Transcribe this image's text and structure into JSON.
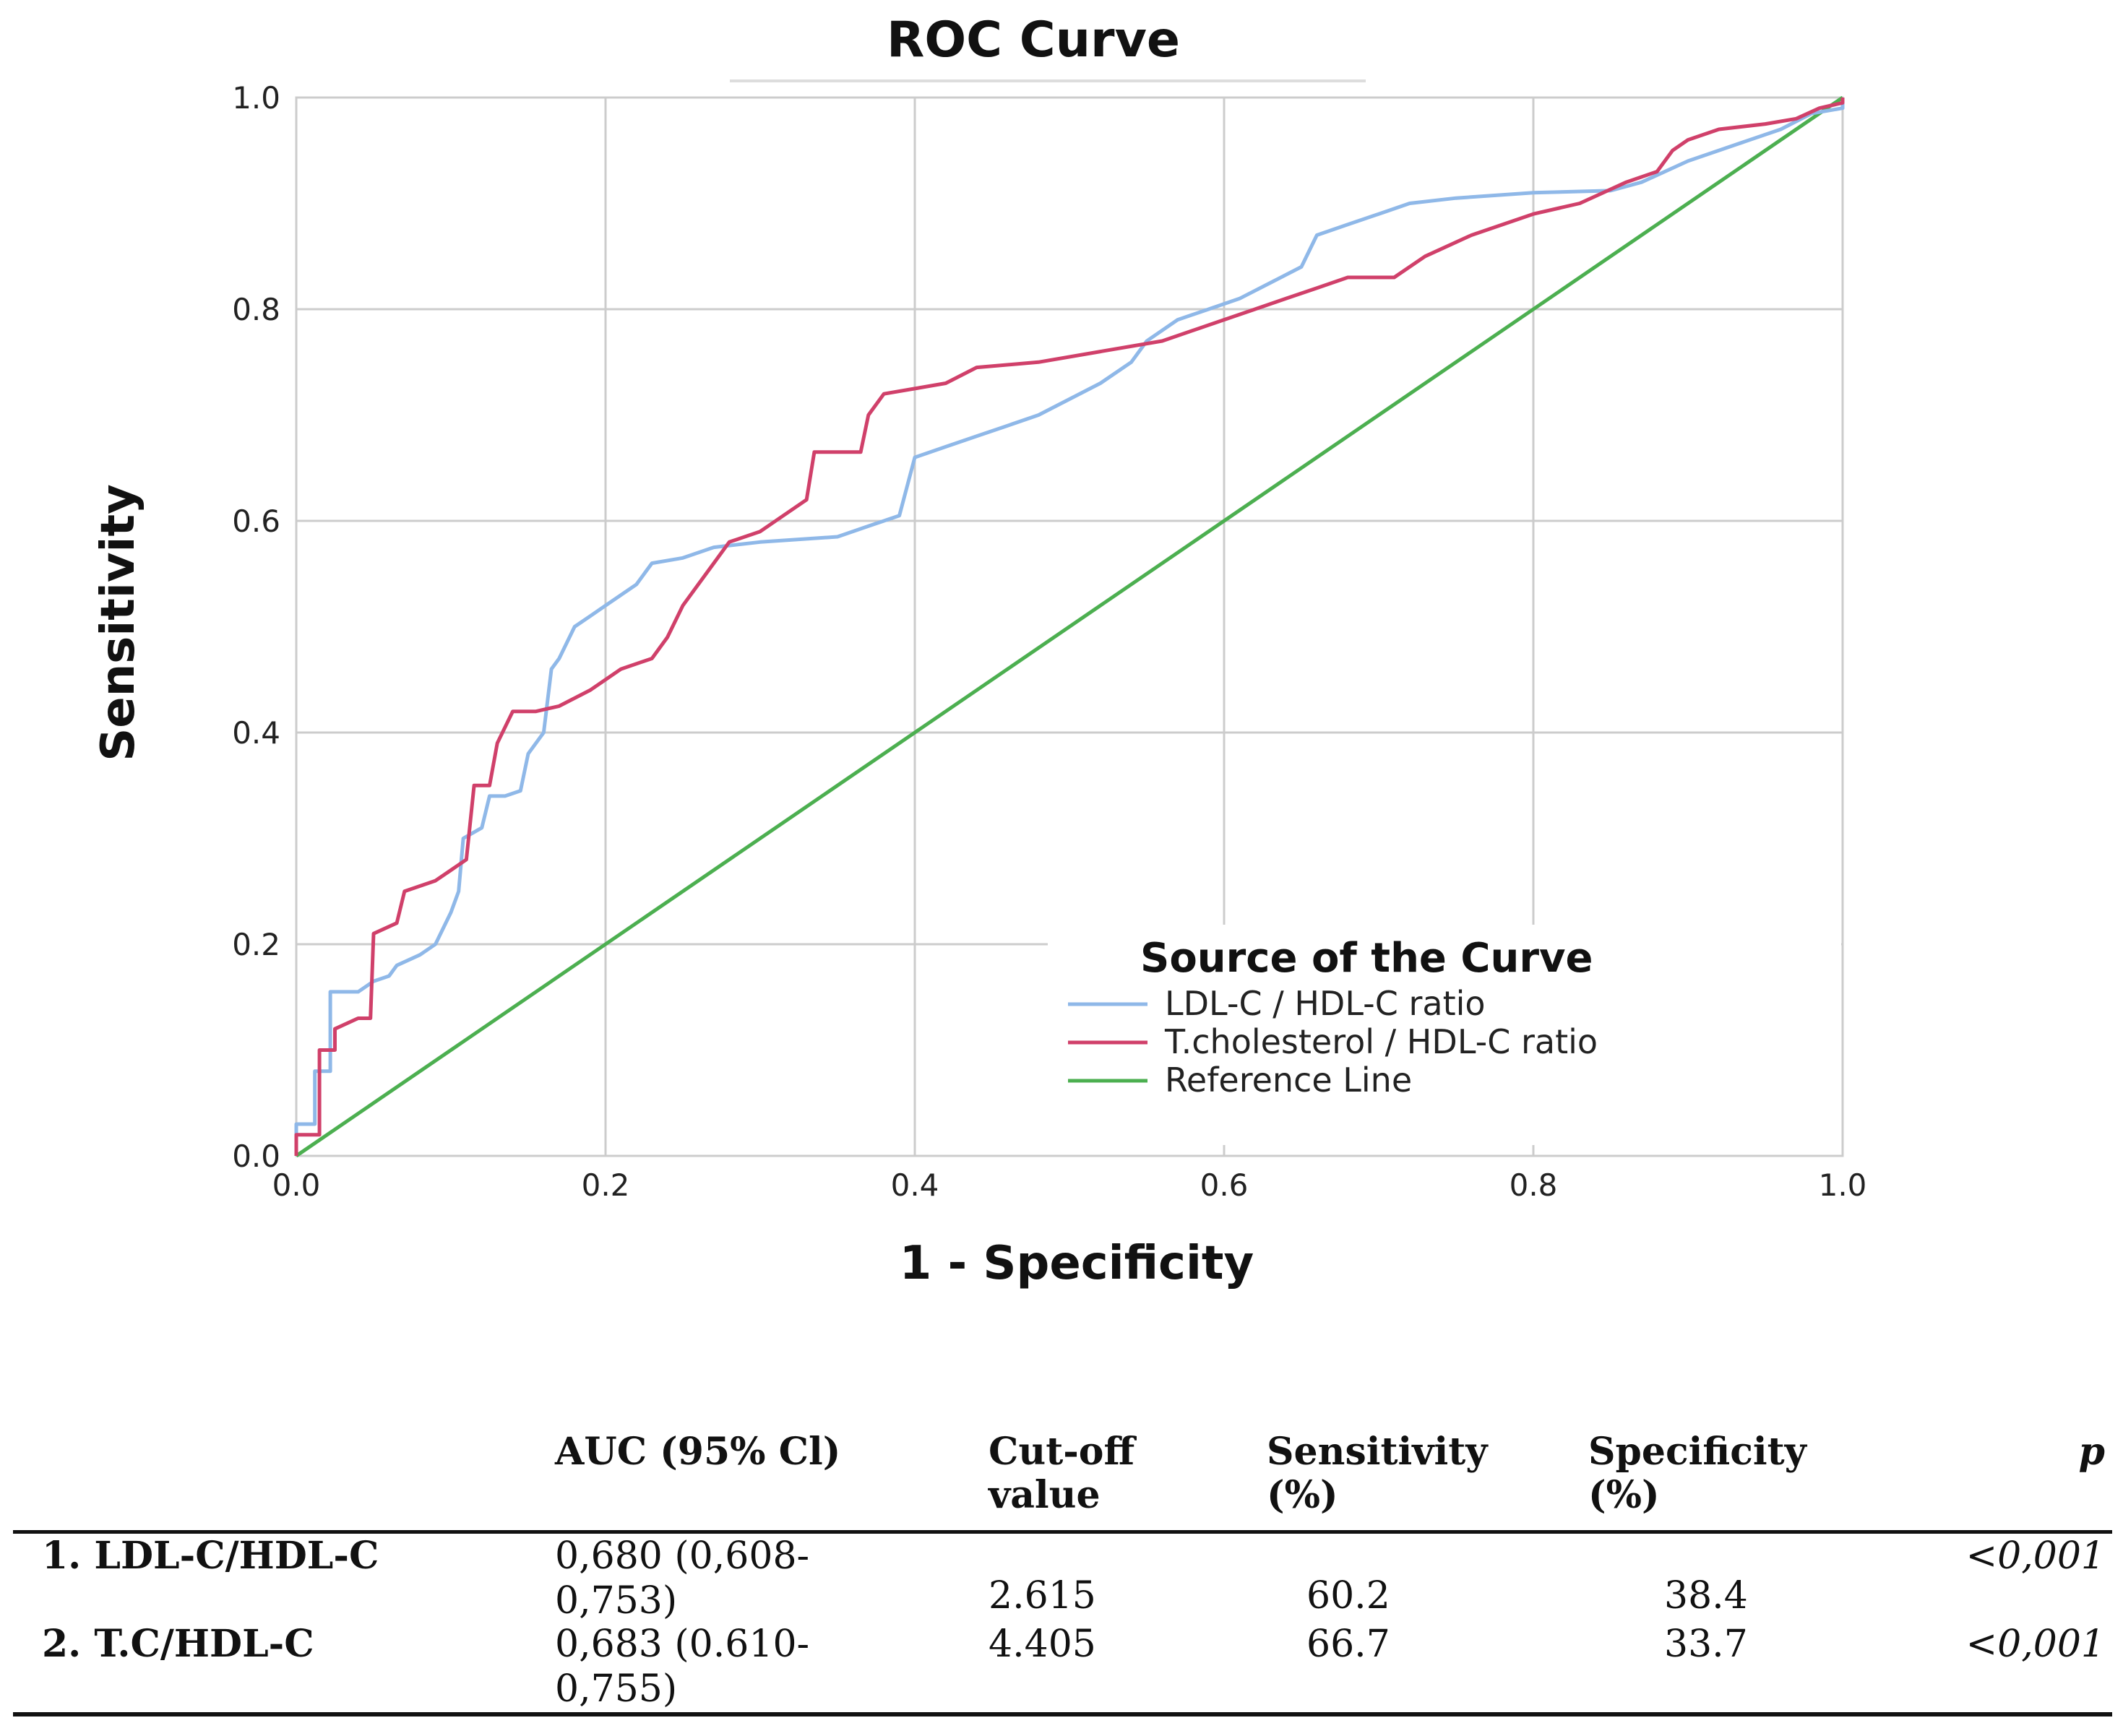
{
  "chart_data": {
    "type": "line",
    "title": "ROC Curve",
    "xlabel": "1 - Specificity",
    "ylabel": "Sensitivity",
    "xlim": [
      0,
      1
    ],
    "ylim": [
      0,
      1
    ],
    "grid": true,
    "x_ticks": [
      "0.0",
      "0.2",
      "0.4",
      "0.6",
      "0.8",
      "1.0"
    ],
    "y_ticks": [
      "0.0",
      "0.2",
      "0.4",
      "0.6",
      "0.8",
      "1.0"
    ],
    "legend_title": "Source of the Curve",
    "legend_position": "bottom-right",
    "series": [
      {
        "name": "LDL-C / HDL-C ratio",
        "color": "#8fb8e8",
        "points": [
          [
            0,
            0
          ],
          [
            0,
            0.03
          ],
          [
            0.012,
            0.03
          ],
          [
            0.012,
            0.08
          ],
          [
            0.022,
            0.08
          ],
          [
            0.022,
            0.155
          ],
          [
            0.04,
            0.155
          ],
          [
            0.05,
            0.165
          ],
          [
            0.06,
            0.17
          ],
          [
            0.065,
            0.18
          ],
          [
            0.08,
            0.19
          ],
          [
            0.09,
            0.2
          ],
          [
            0.1,
            0.23
          ],
          [
            0.105,
            0.25
          ],
          [
            0.108,
            0.3
          ],
          [
            0.12,
            0.31
          ],
          [
            0.125,
            0.34
          ],
          [
            0.135,
            0.34
          ],
          [
            0.145,
            0.345
          ],
          [
            0.15,
            0.38
          ],
          [
            0.16,
            0.4
          ],
          [
            0.165,
            0.46
          ],
          [
            0.17,
            0.47
          ],
          [
            0.18,
            0.5
          ],
          [
            0.19,
            0.51
          ],
          [
            0.2,
            0.52
          ],
          [
            0.22,
            0.54
          ],
          [
            0.23,
            0.56
          ],
          [
            0.25,
            0.565
          ],
          [
            0.27,
            0.575
          ],
          [
            0.3,
            0.58
          ],
          [
            0.35,
            0.585
          ],
          [
            0.37,
            0.595
          ],
          [
            0.38,
            0.6
          ],
          [
            0.39,
            0.605
          ],
          [
            0.4,
            0.66
          ],
          [
            0.42,
            0.67
          ],
          [
            0.44,
            0.68
          ],
          [
            0.46,
            0.69
          ],
          [
            0.48,
            0.7
          ],
          [
            0.5,
            0.715
          ],
          [
            0.52,
            0.73
          ],
          [
            0.54,
            0.75
          ],
          [
            0.55,
            0.77
          ],
          [
            0.57,
            0.79
          ],
          [
            0.59,
            0.8
          ],
          [
            0.61,
            0.81
          ],
          [
            0.63,
            0.825
          ],
          [
            0.65,
            0.84
          ],
          [
            0.66,
            0.87
          ],
          [
            0.68,
            0.88
          ],
          [
            0.7,
            0.89
          ],
          [
            0.72,
            0.9
          ],
          [
            0.75,
            0.905
          ],
          [
            0.8,
            0.91
          ],
          [
            0.85,
            0.912
          ],
          [
            0.87,
            0.92
          ],
          [
            0.9,
            0.94
          ],
          [
            0.93,
            0.955
          ],
          [
            0.96,
            0.97
          ],
          [
            0.98,
            0.985
          ],
          [
            1,
            0.99
          ],
          [
            1,
            1
          ]
        ]
      },
      {
        "name": "T.cholesterol / HDL-C ratio",
        "color": "#d0406a",
        "points": [
          [
            0,
            0
          ],
          [
            0,
            0.02
          ],
          [
            0.015,
            0.02
          ],
          [
            0.015,
            0.1
          ],
          [
            0.025,
            0.1
          ],
          [
            0.025,
            0.12
          ],
          [
            0.04,
            0.13
          ],
          [
            0.048,
            0.13
          ],
          [
            0.05,
            0.21
          ],
          [
            0.065,
            0.22
          ],
          [
            0.07,
            0.25
          ],
          [
            0.09,
            0.26
          ],
          [
            0.1,
            0.27
          ],
          [
            0.11,
            0.28
          ],
          [
            0.115,
            0.35
          ],
          [
            0.125,
            0.35
          ],
          [
            0.13,
            0.39
          ],
          [
            0.14,
            0.42
          ],
          [
            0.155,
            0.42
          ],
          [
            0.17,
            0.425
          ],
          [
            0.19,
            0.44
          ],
          [
            0.21,
            0.46
          ],
          [
            0.23,
            0.47
          ],
          [
            0.24,
            0.49
          ],
          [
            0.25,
            0.52
          ],
          [
            0.26,
            0.54
          ],
          [
            0.27,
            0.56
          ],
          [
            0.28,
            0.58
          ],
          [
            0.3,
            0.59
          ],
          [
            0.31,
            0.6
          ],
          [
            0.33,
            0.62
          ],
          [
            0.335,
            0.665
          ],
          [
            0.365,
            0.665
          ],
          [
            0.37,
            0.7
          ],
          [
            0.38,
            0.72
          ],
          [
            0.4,
            0.725
          ],
          [
            0.42,
            0.73
          ],
          [
            0.44,
            0.745
          ],
          [
            0.48,
            0.75
          ],
          [
            0.52,
            0.76
          ],
          [
            0.56,
            0.77
          ],
          [
            0.6,
            0.79
          ],
          [
            0.62,
            0.8
          ],
          [
            0.64,
            0.81
          ],
          [
            0.66,
            0.82
          ],
          [
            0.68,
            0.83
          ],
          [
            0.71,
            0.83
          ],
          [
            0.73,
            0.85
          ],
          [
            0.76,
            0.87
          ],
          [
            0.8,
            0.89
          ],
          [
            0.83,
            0.9
          ],
          [
            0.86,
            0.92
          ],
          [
            0.88,
            0.93
          ],
          [
            0.89,
            0.95
          ],
          [
            0.9,
            0.96
          ],
          [
            0.92,
            0.97
          ],
          [
            0.95,
            0.975
          ],
          [
            0.97,
            0.98
          ],
          [
            0.985,
            0.99
          ],
          [
            1,
            0.995
          ],
          [
            1,
            1
          ]
        ]
      },
      {
        "name": "Reference Line",
        "color": "#4caf50",
        "points": [
          [
            0,
            0
          ],
          [
            1,
            1
          ]
        ]
      }
    ]
  },
  "table": {
    "headers": {
      "auc": "AUC (95% Cl)",
      "cutoff_1": "Cut-off",
      "cutoff_2": "value",
      "sens_1": "Sensitivity",
      "sens_2": "(%)",
      "spec_1": "Specificity",
      "spec_2": "(%)",
      "p": "p"
    },
    "rows": [
      {
        "label": "1. LDL-C/HDL-C",
        "auc_1": "0,680 (0,608-",
        "auc_2": "0,753)",
        "cutoff": "2.615",
        "sensitivity": "60.2",
        "specificity": "38.4",
        "p": "<0,001"
      },
      {
        "label": "2. T.C/HDL-C",
        "auc_1": "0,683 (0.610-",
        "auc_2": "0,755)",
        "cutoff": "4.405",
        "sensitivity": "66.7",
        "specificity": "33.7",
        "p": "<0,001"
      }
    ]
  }
}
